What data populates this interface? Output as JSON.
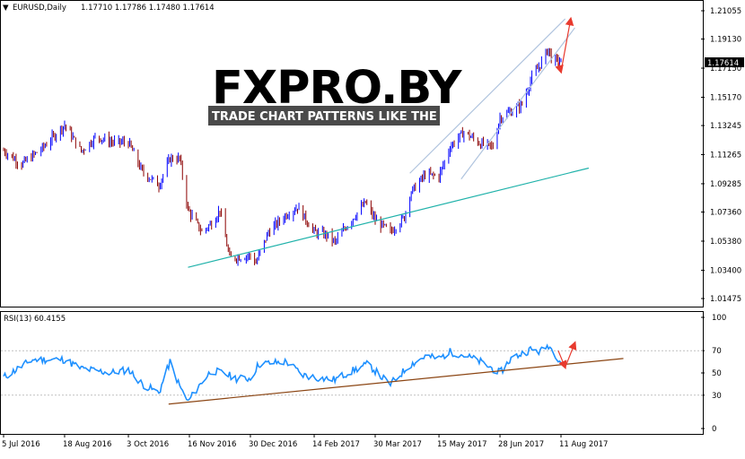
{
  "header": {
    "symbol_label": "EURUSD,Daily",
    "ohlc": "1.17710 1.17786 1.17480 1.17614"
  },
  "current_price": "1.17614",
  "logo": {
    "main": "FXPRO.BY",
    "tagline": "TRADE CHART PATTERNS LIKE THE PROS"
  },
  "rsi_header": "RSI(13) 60.4155",
  "colors": {
    "bull": "#0000ff",
    "bear": "#8b0000",
    "rsi_line": "#1e90ff",
    "support": "#20b2aa",
    "channel": "#b0c4de",
    "rsi_trend": "#8b4513",
    "arrow": "#e83a2e",
    "logo_red": "#d7261e"
  },
  "chart_data": [
    {
      "type": "line",
      "series": [
        {
          "values": [
            {
              "date": "2016-07-05",
              "close": 1.1155
            },
            {
              "date": "2016-07-18",
              "close": 1.106
            },
            {
              "date": "2016-08-02",
              "close": 1.117
            },
            {
              "date": "2016-08-18",
              "close": 1.133
            },
            {
              "date": "2016-08-30",
              "close": 1.115
            },
            {
              "date": "2016-09-10",
              "close": 1.125
            },
            {
              "date": "2016-09-22",
              "close": 1.121
            },
            {
              "date": "2016-10-03",
              "close": 1.121
            },
            {
              "date": "2016-10-13",
              "close": 1.101
            },
            {
              "date": "2016-10-25",
              "close": 1.092
            },
            {
              "date": "2016-11-02",
              "close": 1.11
            },
            {
              "date": "2016-11-09",
              "close": 1.11
            },
            {
              "date": "2016-11-15",
              "close": 1.075
            },
            {
              "date": "2016-11-25",
              "close": 1.06
            },
            {
              "date": "2016-12-02",
              "close": 1.066
            },
            {
              "date": "2016-12-08",
              "close": 1.075
            },
            {
              "date": "2016-12-15",
              "close": 1.042
            },
            {
              "date": "2016-12-22",
              "close": 1.043
            },
            {
              "date": "2016-12-30",
              "close": 1.044
            },
            {
              "date": "2017-01-03",
              "close": 1.039
            },
            {
              "date": "2017-01-12",
              "close": 1.06
            },
            {
              "date": "2017-01-25",
              "close": 1.072
            },
            {
              "date": "2017-02-02",
              "close": 1.077
            },
            {
              "date": "2017-02-14",
              "close": 1.06
            },
            {
              "date": "2017-02-23",
              "close": 1.058
            },
            {
              "date": "2017-03-01",
              "close": 1.053
            },
            {
              "date": "2017-03-10",
              "close": 1.065
            },
            {
              "date": "2017-03-23",
              "close": 1.08
            },
            {
              "date": "2017-03-30",
              "close": 1.068
            },
            {
              "date": "2017-04-10",
              "close": 1.06
            },
            {
              "date": "2017-04-20",
              "close": 1.07
            },
            {
              "date": "2017-04-24",
              "close": 1.086
            },
            {
              "date": "2017-05-05",
              "close": 1.099
            },
            {
              "date": "2017-05-15",
              "close": 1.098
            },
            {
              "date": "2017-05-23",
              "close": 1.118
            },
            {
              "date": "2017-06-02",
              "close": 1.128
            },
            {
              "date": "2017-06-14",
              "close": 1.12
            },
            {
              "date": "2017-06-23",
              "close": 1.118
            },
            {
              "date": "2017-06-28",
              "close": 1.138
            },
            {
              "date": "2017-07-06",
              "close": 1.142
            },
            {
              "date": "2017-07-14",
              "close": 1.147
            },
            {
              "date": "2017-07-20",
              "close": 1.163
            },
            {
              "date": "2017-07-27",
              "close": 1.174
            },
            {
              "date": "2017-08-02",
              "close": 1.185
            },
            {
              "date": "2017-08-04",
              "close": 1.178
            },
            {
              "date": "2017-08-09",
              "close": 1.176
            },
            {
              "date": "2017-08-11",
              "close": 1.1761
            }
          ]
        }
      ],
      "x_tick_labels": [
        "5 Jul 2016",
        "18 Aug 2016",
        "3 Oct 2016",
        "16 Nov 2016",
        "30 Dec 2016",
        "14 Feb 2017",
        "30 Mar 2017",
        "15 May 2017",
        "28 Jun 2017",
        "11 Aug 2017"
      ],
      "y_tick_labels": [
        "1.21055",
        "1.19130",
        "1.17150",
        "1.15170",
        "1.13245",
        "1.11265",
        "1.09285",
        "1.07360",
        "1.05380",
        "1.03400",
        "1.01475"
      ],
      "ylim": [
        1.01475,
        1.21055
      ],
      "price_tag": "1.17614",
      "annotations": [
        {
          "kind": "support-line",
          "from": {
            "date": "2016-11-15",
            "price": 1.036
          },
          "to": {
            "date": "2017-08-31",
            "price": 1.1035
          }
        },
        {
          "kind": "channel-upper",
          "from": {
            "date": "2017-04-24",
            "price": 1.1
          },
          "to": {
            "date": "2017-08-14",
            "price": 1.205
          }
        },
        {
          "kind": "channel-lower",
          "from": {
            "date": "2017-05-31",
            "price": 1.096
          },
          "to": {
            "date": "2017-08-21",
            "price": 1.199
          }
        },
        {
          "kind": "arrow-down",
          "from": {
            "date": "2017-08-09",
            "price": 1.176
          },
          "to": {
            "date": "2017-08-11",
            "price": 1.169
          }
        },
        {
          "kind": "arrow-up",
          "from": {
            "date": "2017-08-11",
            "price": 1.169
          },
          "to": {
            "date": "2017-08-18",
            "price": 1.205
          }
        }
      ]
    },
    {
      "type": "line",
      "series": [
        {
          "values": [
            {
              "date": "2016-07-05",
              "value": 46
            },
            {
              "date": "2016-07-26",
              "value": 62
            },
            {
              "date": "2016-08-18",
              "value": 62
            },
            {
              "date": "2016-08-30",
              "value": 54
            },
            {
              "date": "2016-09-10",
              "value": 52
            },
            {
              "date": "2016-09-20",
              "value": 50
            },
            {
              "date": "2016-10-03",
              "value": 53
            },
            {
              "date": "2016-10-13",
              "value": 40
            },
            {
              "date": "2016-10-25",
              "value": 32
            },
            {
              "date": "2016-11-02",
              "value": 60
            },
            {
              "date": "2016-11-09",
              "value": 38
            },
            {
              "date": "2016-11-15",
              "value": 24
            },
            {
              "date": "2016-11-25",
              "value": 42
            },
            {
              "date": "2016-12-02",
              "value": 52
            },
            {
              "date": "2016-12-10",
              "value": 50
            },
            {
              "date": "2016-12-20",
              "value": 45
            },
            {
              "date": "2016-12-30",
              "value": 45
            },
            {
              "date": "2017-01-05",
              "value": 58
            },
            {
              "date": "2017-01-25",
              "value": 60
            },
            {
              "date": "2017-02-06",
              "value": 48
            },
            {
              "date": "2017-02-20",
              "value": 45
            },
            {
              "date": "2017-03-01",
              "value": 44
            },
            {
              "date": "2017-03-10",
              "value": 50
            },
            {
              "date": "2017-03-25",
              "value": 58
            },
            {
              "date": "2017-04-03",
              "value": 47
            },
            {
              "date": "2017-04-10",
              "value": 40
            },
            {
              "date": "2017-04-24",
              "value": 57
            },
            {
              "date": "2017-05-05",
              "value": 65
            },
            {
              "date": "2017-05-15",
              "value": 63
            },
            {
              "date": "2017-05-23",
              "value": 69
            },
            {
              "date": "2017-06-02",
              "value": 66
            },
            {
              "date": "2017-06-14",
              "value": 60
            },
            {
              "date": "2017-06-28",
              "value": 50
            },
            {
              "date": "2017-07-06",
              "value": 63
            },
            {
              "date": "2017-07-20",
              "value": 71
            },
            {
              "date": "2017-07-27",
              "value": 69
            },
            {
              "date": "2017-08-02",
              "value": 75
            },
            {
              "date": "2017-08-11",
              "value": 60
            }
          ]
        }
      ],
      "title": "RSI(13) 60.4155",
      "y_tick_labels": [
        "100",
        "70",
        "50",
        "30",
        "0"
      ],
      "ylim": [
        0,
        100
      ],
      "levels": [
        70,
        30
      ],
      "annotations": [
        {
          "kind": "rsi-trendline",
          "from": {
            "date": "2016-11-01",
            "value": 22
          },
          "to": {
            "date": "2017-09-25",
            "value": 63
          }
        },
        {
          "kind": "arrow-down",
          "from": {
            "date": "2017-08-09",
            "value": 70
          },
          "to": {
            "date": "2017-08-14",
            "value": 55
          }
        },
        {
          "kind": "arrow-up",
          "from": {
            "date": "2017-08-14",
            "value": 55
          },
          "to": {
            "date": "2017-08-21",
            "value": 77
          }
        }
      ]
    }
  ]
}
